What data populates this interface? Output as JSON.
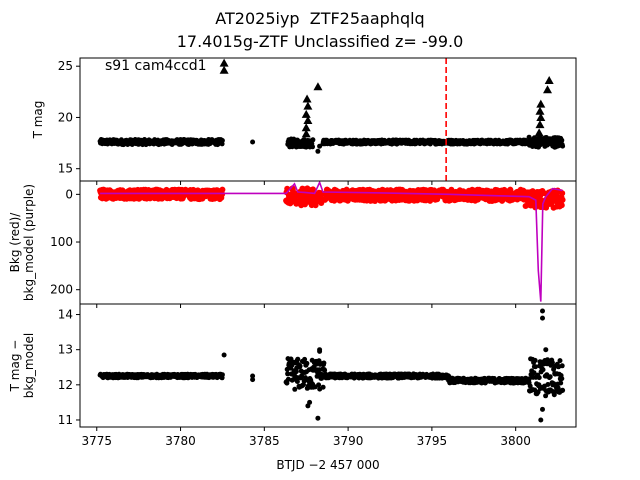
{
  "figure": {
    "title_line1": "AT2025iyp  ZTF25aaphqlq",
    "title_line2": "17.4015g-ZTF Unclassified z= -99.0",
    "annotation": "s91 cam4ccd1",
    "xlabel": "BTJD −2 457 000",
    "xlim": [
      3774.0,
      3803.6
    ],
    "xticks": [
      3775,
      3780,
      3785,
      3790,
      3795,
      3800
    ]
  },
  "chart_data": [
    {
      "type": "scatter",
      "panel": "top",
      "ylabel": "T mag",
      "ylim": [
        25.8,
        13.8
      ],
      "inverted_y": true,
      "yticks": [
        15,
        20,
        25
      ],
      "colors": {
        "points": "#000000",
        "marker_line": "#ff0000"
      },
      "vertical_line": {
        "x": 3795.85,
        "style": "dashed",
        "color": "#ff0000"
      },
      "series": [
        {
          "marker": "circle",
          "segments": [
            {
              "x0": 3775.2,
              "x1": 3782.5,
              "y": 17.6,
              "spread": 0.25
            },
            {
              "x0": 3786.4,
              "x1": 3787.9,
              "y": 17.5,
              "spread": 0.4
            },
            {
              "x0": 3788.5,
              "x1": 3800.8,
              "y": 17.6,
              "spread": 0.2
            },
            {
              "x0": 3800.8,
              "x1": 3802.8,
              "y": 17.6,
              "spread": 0.5
            }
          ],
          "points": [
            [
              3784.3,
              17.6
            ],
            [
              3788.2,
              16.7
            ],
            [
              3788.3,
              17.2
            ]
          ]
        },
        {
          "marker": "triangle",
          "points": [
            [
              3782.6,
              24.6
            ],
            [
              3782.6,
              25.3
            ],
            [
              3787.5,
              18.4
            ],
            [
              3787.5,
              19.0
            ],
            [
              3787.6,
              19.7
            ],
            [
              3787.5,
              20.3
            ],
            [
              3787.6,
              21.1
            ],
            [
              3787.55,
              21.8
            ],
            [
              3788.2,
              23.0
            ],
            [
              3801.4,
              18.5
            ],
            [
              3801.45,
              19.3
            ],
            [
              3801.5,
              20.0
            ],
            [
              3801.45,
              20.6
            ],
            [
              3801.5,
              21.3
            ],
            [
              3801.9,
              22.7
            ],
            [
              3802.0,
              23.6
            ]
          ]
        }
      ]
    },
    {
      "type": "scatter",
      "panel": "middle",
      "ylabel": "Bkg (red)/\nbkg_model (purple)",
      "ylim": [
        -28,
        230
      ],
      "yticks": [
        0,
        100,
        200
      ],
      "colors": {
        "bkg": "#ff0000",
        "model": "#bf00bf"
      },
      "series": [
        {
          "name": "Bkg",
          "segments": [
            {
              "x0": 3775.2,
              "x1": 3782.5,
              "y": 0,
              "spread": 10
            },
            {
              "x0": 3786.3,
              "x1": 3788.4,
              "y": 5,
              "spread": 18
            },
            {
              "x0": 3788.6,
              "x1": 3800.5,
              "y": 2,
              "spread": 12
            },
            {
              "x0": 3800.5,
              "x1": 3802.8,
              "y": 10,
              "spread": 18
            }
          ]
        },
        {
          "name": "bkg_model",
          "x": [
            3775.2,
            3782.6,
            3786.3,
            3786.8,
            3787.0,
            3787.4,
            3788.0,
            3788.3,
            3788.5,
            3792,
            3796,
            3799,
            3800.8,
            3801.2,
            3801.35,
            3801.5,
            3801.62,
            3801.8,
            3802.2,
            3802.8
          ],
          "y": [
            -2,
            -2,
            -2,
            -22,
            -5,
            -4,
            -2,
            -25,
            -5,
            -3,
            0,
            3,
            5,
            12,
            160,
            225,
            20,
            5,
            -12,
            -8
          ]
        }
      ]
    },
    {
      "type": "scatter",
      "panel": "bottom",
      "ylabel": "T mag −\nbkg_model",
      "ylim": [
        14.3,
        10.8
      ],
      "inverted_y": true,
      "yticks": [
        11,
        12,
        13,
        14
      ],
      "colors": {
        "points": "#000000"
      },
      "series": [
        {
          "marker": "circle",
          "segments": [
            {
              "x0": 3775.2,
              "x1": 3782.5,
              "y": 12.25,
              "spread": 0.05
            },
            {
              "x0": 3786.3,
              "x1": 3788.6,
              "y": 12.3,
              "spread": 0.45
            },
            {
              "x0": 3788.6,
              "x1": 3796.0,
              "y": 12.25,
              "spread": 0.06
            },
            {
              "x0": 3796.0,
              "x1": 3800.8,
              "y": 12.12,
              "spread": 0.07
            },
            {
              "x0": 3800.8,
              "x1": 3802.8,
              "y": 12.2,
              "spread": 0.55
            }
          ],
          "points": [
            [
              3782.6,
              12.85
            ],
            [
              3784.3,
              12.15
            ],
            [
              3784.3,
              12.25
            ],
            [
              3787.6,
              11.4
            ],
            [
              3787.7,
              11.5
            ],
            [
              3788.2,
              11.05
            ],
            [
              3788.3,
              13.0
            ],
            [
              3788.3,
              12.95
            ],
            [
              3801.5,
              11.0
            ],
            [
              3801.6,
              11.3
            ],
            [
              3801.6,
              13.9
            ],
            [
              3801.6,
              14.1
            ],
            [
              3801.8,
              13.0
            ]
          ]
        }
      ]
    }
  ]
}
